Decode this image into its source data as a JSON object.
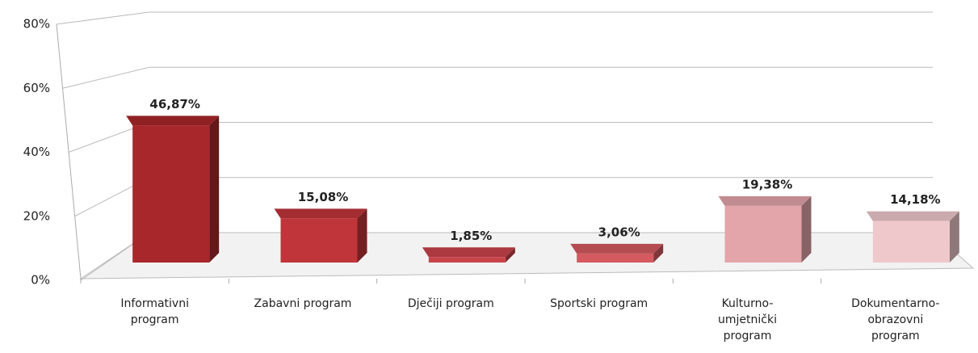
{
  "chart_data": {
    "type": "bar3d",
    "categories": [
      "Informativni program",
      "Zabavni program",
      "Dječiji program",
      "Sportski program",
      "Kulturno-umjetnički program",
      "Dokumentarno-obrazovni program"
    ],
    "values": [
      46.87,
      15.08,
      1.85,
      3.06,
      19.38,
      14.18
    ],
    "value_labels": [
      "46,87%",
      "15,08%",
      "1,85%",
      "3,06%",
      "19,38%",
      "14,18%"
    ],
    "colors": [
      "#a8272b",
      "#c0353a",
      "#c9434a",
      "#d45a60",
      "#e3a5aa",
      "#efc8cb"
    ],
    "ylim": [
      0,
      80
    ],
    "yticks": [
      {
        "value": 0,
        "label": "0%"
      },
      {
        "value": 20,
        "label": "20%"
      },
      {
        "value": 40,
        "label": "40%"
      },
      {
        "value": 60,
        "label": "60%"
      },
      {
        "value": 80,
        "label": "80%"
      }
    ],
    "grid": true
  }
}
